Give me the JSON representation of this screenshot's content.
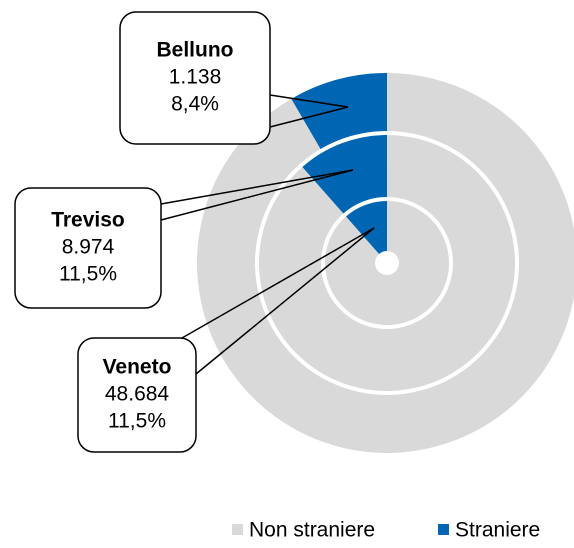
{
  "chart_data": {
    "type": "nested-donut",
    "categories": [
      "Belluno",
      "Treviso",
      "Veneto"
    ],
    "values": [
      8.4,
      11.5,
      11.5
    ],
    "value_labels": [
      "8,4%",
      "11,5%",
      "11,5%"
    ],
    "counts": [
      1138,
      8974,
      48684
    ],
    "count_labels": [
      "1.138",
      "8.974",
      "48.684"
    ],
    "series": [
      {
        "name": "Non straniere",
        "color": "#d9d9d9"
      },
      {
        "name": "Straniere",
        "color": "#0066b3"
      }
    ]
  }
}
